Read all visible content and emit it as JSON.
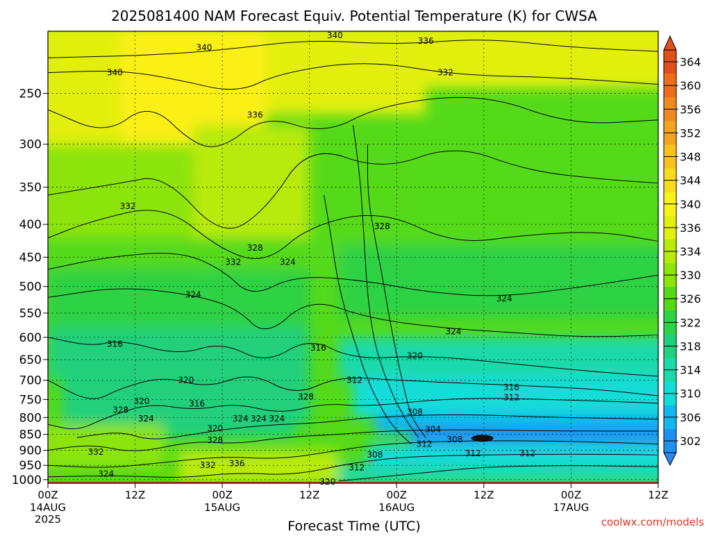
{
  "chart_data": {
    "type": "heatmap",
    "title": "2025081400 NAM Forecast Equiv. Potential Temperature (K) for CWSA",
    "xlabel": "Forecast Time (UTC)",
    "ylabel": "",
    "credit": "coolwx.com/models",
    "x_ticks": [
      {
        "hours": 0,
        "label": "00Z",
        "date": "14AUG",
        "year": "2025"
      },
      {
        "hours": 12,
        "label": "12Z",
        "date": "",
        "year": ""
      },
      {
        "hours": 24,
        "label": "00Z",
        "date": "15AUG",
        "year": ""
      },
      {
        "hours": 36,
        "label": "12Z",
        "date": "",
        "year": ""
      },
      {
        "hours": 48,
        "label": "00Z",
        "date": "16AUG",
        "year": ""
      },
      {
        "hours": 60,
        "label": "12Z",
        "date": "",
        "year": ""
      },
      {
        "hours": 72,
        "label": "00Z",
        "date": "17AUG",
        "year": ""
      },
      {
        "hours": 84,
        "label": "12Z",
        "date": "",
        "year": ""
      }
    ],
    "x_range_hours": [
      0,
      84
    ],
    "y_ticks": [
      {
        "p": 250,
        "label": "250"
      },
      {
        "p": 300,
        "label": "300"
      },
      {
        "p": 350,
        "label": "350"
      },
      {
        "p": 400,
        "label": "400"
      },
      {
        "p": 450,
        "label": "450"
      },
      {
        "p": 500,
        "label": "500"
      },
      {
        "p": 550,
        "label": "550"
      },
      {
        "p": 600,
        "label": "600"
      },
      {
        "p": 650,
        "label": "650"
      },
      {
        "p": 700,
        "label": "700"
      },
      {
        "p": 750,
        "label": "750"
      },
      {
        "p": 800,
        "label": "800"
      },
      {
        "p": 850,
        "label": "850"
      },
      {
        "p": 900,
        "label": "900"
      },
      {
        "p": 950,
        "label": "950"
      },
      {
        "p": 1000,
        "label": "1000"
      }
    ],
    "y_range_hPa": [
      200,
      1013
    ],
    "y_scale": "log-pressure",
    "grid": true,
    "levels": [
      302,
      306,
      310,
      314,
      318,
      322,
      326,
      330,
      334,
      336,
      340,
      344,
      348,
      352,
      356,
      360,
      364
    ],
    "colorbar": [
      {
        "value": 364,
        "color": "#e0501a"
      },
      {
        "value": 360,
        "color": "#ec6e1c"
      },
      {
        "value": 356,
        "color": "#f08a1e"
      },
      {
        "value": 352,
        "color": "#f3a420"
      },
      {
        "value": 348,
        "color": "#f6c21e"
      },
      {
        "value": 344,
        "color": "#f8dc1c"
      },
      {
        "value": 340,
        "color": "#fbf018"
      },
      {
        "value": 336,
        "color": "#e2ef10"
      },
      {
        "value": 334,
        "color": "#b8ea0a"
      },
      {
        "value": 330,
        "color": "#8ce40a"
      },
      {
        "value": 326,
        "color": "#55da1a"
      },
      {
        "value": 322,
        "color": "#2ed245"
      },
      {
        "value": 318,
        "color": "#20d07c"
      },
      {
        "value": 314,
        "color": "#1ad9aa"
      },
      {
        "value": 310,
        "color": "#14dcd8"
      },
      {
        "value": 306,
        "color": "#10b8ee"
      },
      {
        "value": 302,
        "color": "#2090f0"
      }
    ],
    "colorbar_below_color": "#2a86f0",
    "ground_color": "#a0522d",
    "contour_labels": [
      {
        "text": "340",
        "hours": 21.5,
        "p": 212
      },
      {
        "text": "340",
        "hours": 39.5,
        "p": 203
      },
      {
        "text": "336",
        "hours": 52,
        "p": 207
      },
      {
        "text": "340",
        "hours": 9.2,
        "p": 232
      },
      {
        "text": "332",
        "hours": 54.7,
        "p": 232
      },
      {
        "text": "336",
        "hours": 28.5,
        "p": 270
      },
      {
        "text": "332",
        "hours": 11,
        "p": 375
      },
      {
        "text": "328",
        "hours": 46,
        "p": 403
      },
      {
        "text": "328",
        "hours": 28.5,
        "p": 435
      },
      {
        "text": "332",
        "hours": 25.5,
        "p": 458
      },
      {
        "text": "324",
        "hours": 33,
        "p": 458
      },
      {
        "text": "324",
        "hours": 20,
        "p": 515
      },
      {
        "text": "324",
        "hours": 62.8,
        "p": 522
      },
      {
        "text": "324",
        "hours": 55.8,
        "p": 588
      },
      {
        "text": "316",
        "hours": 9.2,
        "p": 615
      },
      {
        "text": "316",
        "hours": 37.2,
        "p": 623
      },
      {
        "text": "320",
        "hours": 50.5,
        "p": 641
      },
      {
        "text": "320",
        "hours": 19,
        "p": 700
      },
      {
        "text": "312",
        "hours": 42.2,
        "p": 700
      },
      {
        "text": "316",
        "hours": 63.8,
        "p": 718
      },
      {
        "text": "312",
        "hours": 63.8,
        "p": 745
      },
      {
        "text": "328",
        "hours": 35.5,
        "p": 743
      },
      {
        "text": "320",
        "hours": 12.9,
        "p": 755
      },
      {
        "text": "316",
        "hours": 20.5,
        "p": 762
      },
      {
        "text": "328",
        "hours": 10,
        "p": 779
      },
      {
        "text": "324",
        "hours": 13.5,
        "p": 803
      },
      {
        "text": "324",
        "hours": 26.5,
        "p": 803
      },
      {
        "text": "324",
        "hours": 29,
        "p": 803
      },
      {
        "text": "324",
        "hours": 31.5,
        "p": 803
      },
      {
        "text": "308",
        "hours": 50.5,
        "p": 785
      },
      {
        "text": "304",
        "hours": 53,
        "p": 835
      },
      {
        "text": "320",
        "hours": 23,
        "p": 832
      },
      {
        "text": "328",
        "hours": 23,
        "p": 868
      },
      {
        "text": "308",
        "hours": 56,
        "p": 866
      },
      {
        "text": "312",
        "hours": 51.8,
        "p": 880
      },
      {
        "text": "332",
        "hours": 6.6,
        "p": 905
      },
      {
        "text": "312",
        "hours": 58.5,
        "p": 910
      },
      {
        "text": "312",
        "hours": 66,
        "p": 910
      },
      {
        "text": "308",
        "hours": 45,
        "p": 915
      },
      {
        "text": "332",
        "hours": 22,
        "p": 950
      },
      {
        "text": "336",
        "hours": 26,
        "p": 944
      },
      {
        "text": "312",
        "hours": 42.5,
        "p": 958
      },
      {
        "text": "324",
        "hours": 8,
        "p": 980
      },
      {
        "text": "320",
        "hours": 38.5,
        "p": 1008
      }
    ]
  }
}
